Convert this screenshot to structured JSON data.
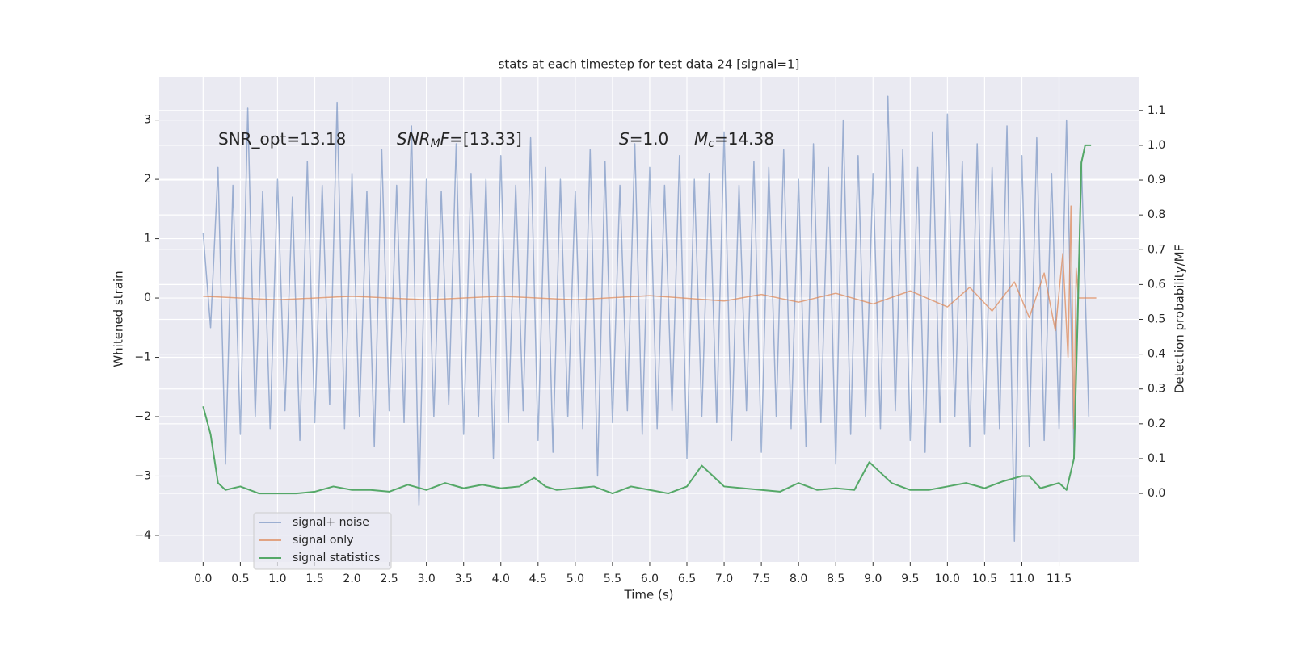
{
  "chart_data": {
    "type": "line",
    "title": "stats at each timestep for test data 24 [signal=1]",
    "xlabel": "Time (s)",
    "ylabel": "Whitened strain",
    "y2label": "Detection probability/MF",
    "xlim": [
      -0.59,
      12.58
    ],
    "ylim": [
      -4.45,
      3.73
    ],
    "y2lim": [
      -0.197,
      1.197
    ],
    "grid": true,
    "legend": "lower left",
    "xticks": [
      {
        "value": 0,
        "label": "0.0"
      },
      0.5,
      {
        "value": 1,
        "label": "1.0"
      },
      1.5,
      {
        "value": 2,
        "label": "2.0"
      },
      2.5,
      {
        "value": 3,
        "label": "3.0"
      },
      3.5,
      {
        "value": 4,
        "label": "4.0"
      },
      4.5,
      {
        "value": 5,
        "label": "5.0"
      },
      5.5,
      {
        "value": 6,
        "label": "6.0"
      },
      6.5,
      {
        "value": 7,
        "label": "7.0"
      },
      7.5,
      {
        "value": 8,
        "label": "8.0"
      },
      8.5,
      {
        "value": 9,
        "label": "9.0"
      },
      9.5,
      {
        "value": 10,
        "label": "10.0"
      },
      10.5,
      {
        "value": 11,
        "label": "11.0"
      },
      11.5
    ],
    "yticks": [
      {
        "value": -4,
        "label": "−4"
      },
      {
        "value": -3,
        "label": "−3"
      },
      {
        "value": -2,
        "label": "−2"
      },
      {
        "value": -1,
        "label": "−1"
      },
      0,
      1,
      2,
      3
    ],
    "y2ticks": [
      {
        "value": 0,
        "label": "0.0"
      },
      0.1,
      0.2,
      0.3,
      0.4,
      0.5,
      0.6,
      0.7,
      0.8,
      0.9,
      {
        "value": 1,
        "label": "1.0"
      },
      1.1
    ],
    "annotations": [
      [
        {
          "text": "SNR_opt=13.18",
          "style": "normal"
        }
      ],
      [
        {
          "text": "SNR",
          "style": "italic"
        },
        {
          "text": "M",
          "style": "sub"
        },
        {
          "text": "F",
          "style": "italic"
        },
        {
          "text": "=[13.33]",
          "style": "normal"
        }
      ],
      [
        {
          "text": "S",
          "style": "italic"
        },
        {
          "text": "=1.0",
          "style": "normal"
        }
      ],
      [
        {
          "text": "M",
          "style": "italic"
        },
        {
          "text": "c",
          "style": "sub"
        },
        {
          "text": "=14.38",
          "style": "normal"
        }
      ]
    ],
    "series": [
      {
        "name": "signal+ noise",
        "color": "#4c72b0",
        "opacity": 0.5,
        "x": [
          0,
          0.1,
          0.2,
          0.3,
          0.4,
          0.5,
          0.6,
          0.7,
          0.8,
          0.9,
          1,
          1.1,
          1.2,
          1.3,
          1.4,
          1.5,
          1.6,
          1.7,
          1.8,
          1.9,
          2,
          2.1,
          2.2,
          2.3,
          2.4,
          2.5,
          2.6,
          2.7,
          2.8,
          2.9,
          3,
          3.1,
          3.2,
          3.3,
          3.4,
          3.5,
          3.6,
          3.7,
          3.8,
          3.9,
          4,
          4.1,
          4.2,
          4.3,
          4.4,
          4.5,
          4.6,
          4.7,
          4.8,
          4.9,
          5,
          5.1,
          5.2,
          5.3,
          5.4,
          5.5,
          5.6,
          5.7,
          5.8,
          5.9,
          6,
          6.1,
          6.2,
          6.3,
          6.4,
          6.5,
          6.6,
          6.7,
          6.8,
          6.9,
          7,
          7.1,
          7.2,
          7.3,
          7.4,
          7.5,
          7.6,
          7.7,
          7.8,
          7.9,
          8,
          8.1,
          8.2,
          8.3,
          8.4,
          8.5,
          8.6,
          8.7,
          8.8,
          8.9,
          9,
          9.1,
          9.2,
          9.3,
          9.4,
          9.5,
          9.6,
          9.7,
          9.8,
          9.9,
          10,
          10.1,
          10.2,
          10.3,
          10.4,
          10.5,
          10.6,
          10.7,
          10.8,
          10.9,
          11,
          11.1,
          11.2,
          11.3,
          11.4,
          11.5,
          11.6,
          11.7,
          11.8,
          11.9
        ],
        "values": [
          1.1,
          -0.5,
          2.2,
          -2.8,
          1.9,
          -2.3,
          3.2,
          -2.0,
          1.8,
          -2.2,
          2.0,
          -1.9,
          1.7,
          -2.4,
          2.3,
          -2.1,
          1.9,
          -1.8,
          3.3,
          -2.2,
          2.1,
          -2.0,
          1.8,
          -2.5,
          2.5,
          -1.9,
          1.9,
          -2.1,
          2.9,
          -3.5,
          2.0,
          -2.0,
          1.8,
          -1.8,
          2.6,
          -2.3,
          2.1,
          -2.0,
          2.0,
          -2.7,
          2.4,
          -2.1,
          1.9,
          -1.9,
          2.7,
          -2.4,
          2.2,
          -2.6,
          2.0,
          -2.0,
          1.8,
          -2.2,
          2.5,
          -3.0,
          2.3,
          -2.1,
          1.9,
          -1.9,
          2.6,
          -2.3,
          2.2,
          -2.2,
          1.9,
          -1.9,
          2.4,
          -2.7,
          2.0,
          -2.0,
          2.1,
          -2.1,
          2.8,
          -2.4,
          1.9,
          -1.9,
          2.3,
          -2.6,
          2.2,
          -2.0,
          2.5,
          -2.2,
          2.0,
          -2.5,
          2.6,
          -2.1,
          2.2,
          -2.8,
          3.0,
          -2.3,
          2.4,
          -2.0,
          2.1,
          -2.2,
          3.4,
          -1.9,
          2.5,
          -2.4,
          2.2,
          -2.6,
          2.8,
          -2.1,
          3.1,
          -2.0,
          2.3,
          -2.5,
          2.6,
          -2.3,
          2.2,
          -2.2,
          2.9,
          -4.1,
          2.4,
          -2.5,
          2.7,
          -2.4,
          2.1,
          -2.2,
          3.0,
          -2.6,
          2.3,
          -2.0
        ]
      },
      {
        "name": "signal only",
        "color": "#dd8452",
        "opacity": 0.7,
        "x": [
          0,
          1,
          2,
          3,
          4,
          5,
          6,
          7,
          7.5,
          8,
          8.5,
          9,
          9.5,
          10,
          10.3,
          10.6,
          10.9,
          11.1,
          11.3,
          11.45,
          11.55,
          11.62,
          11.66,
          11.7,
          11.73,
          11.76,
          12.0
        ],
        "values": [
          0.03,
          -0.03,
          0.03,
          -0.03,
          0.03,
          -0.03,
          0.04,
          -0.05,
          0.06,
          -0.07,
          0.08,
          -0.1,
          0.12,
          -0.15,
          0.18,
          -0.22,
          0.27,
          -0.33,
          0.42,
          -0.55,
          0.75,
          -1.0,
          1.55,
          -2.2,
          0.5,
          0.0,
          0.0
        ]
      },
      {
        "name": "signal statistics",
        "color": "#55a868",
        "opacity": 1,
        "axis": "y2",
        "x": [
          0,
          0.1,
          0.2,
          0.3,
          0.5,
          0.75,
          1.0,
          1.25,
          1.5,
          1.75,
          2.0,
          2.25,
          2.5,
          2.75,
          3.0,
          3.25,
          3.5,
          3.75,
          4.0,
          4.25,
          4.45,
          4.6,
          4.75,
          5.0,
          5.25,
          5.5,
          5.75,
          6.0,
          6.25,
          6.5,
          6.7,
          6.85,
          7.0,
          7.25,
          7.5,
          7.75,
          8.0,
          8.25,
          8.5,
          8.75,
          8.95,
          9.1,
          9.25,
          9.5,
          9.75,
          10.0,
          10.25,
          10.5,
          10.75,
          11.0,
          11.1,
          11.25,
          11.5,
          11.6,
          11.7,
          11.75,
          11.8,
          11.85,
          11.93
        ],
        "values": [
          0.25,
          0.17,
          0.03,
          0.01,
          0.02,
          0.0,
          0.0,
          0.0,
          0.005,
          0.02,
          0.01,
          0.01,
          0.005,
          0.025,
          0.01,
          0.03,
          0.015,
          0.025,
          0.015,
          0.02,
          0.045,
          0.02,
          0.01,
          0.015,
          0.02,
          0.0,
          0.02,
          0.01,
          0.0,
          0.02,
          0.08,
          0.05,
          0.02,
          0.015,
          0.01,
          0.005,
          0.03,
          0.01,
          0.015,
          0.01,
          0.09,
          0.06,
          0.03,
          0.01,
          0.01,
          0.02,
          0.03,
          0.015,
          0.035,
          0.05,
          0.05,
          0.015,
          0.03,
          0.01,
          0.1,
          0.5,
          0.95,
          1.0,
          1.0
        ]
      }
    ]
  }
}
